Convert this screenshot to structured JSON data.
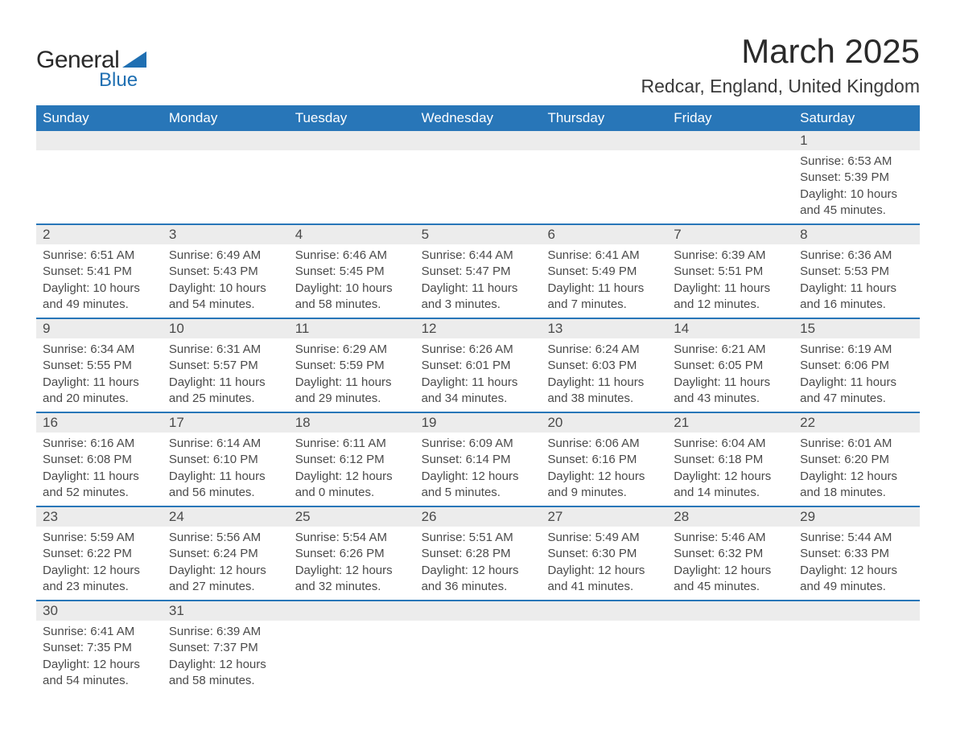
{
  "logo": {
    "general": "General",
    "blue": "Blue"
  },
  "title": "March 2025",
  "location": "Redcar, England, United Kingdom",
  "colors": {
    "header_bg": "#2876b8",
    "header_text": "#ffffff",
    "daynum_bg": "#ececec",
    "text": "#4a4a4a",
    "border": "#2876b8",
    "logo_blue": "#1f6fb2"
  },
  "weekdays": [
    "Sunday",
    "Monday",
    "Tuesday",
    "Wednesday",
    "Thursday",
    "Friday",
    "Saturday"
  ],
  "weeks": [
    [
      {
        "day": "",
        "sunrise": "",
        "sunset": "",
        "daylight1": "",
        "daylight2": ""
      },
      {
        "day": "",
        "sunrise": "",
        "sunset": "",
        "daylight1": "",
        "daylight2": ""
      },
      {
        "day": "",
        "sunrise": "",
        "sunset": "",
        "daylight1": "",
        "daylight2": ""
      },
      {
        "day": "",
        "sunrise": "",
        "sunset": "",
        "daylight1": "",
        "daylight2": ""
      },
      {
        "day": "",
        "sunrise": "",
        "sunset": "",
        "daylight1": "",
        "daylight2": ""
      },
      {
        "day": "",
        "sunrise": "",
        "sunset": "",
        "daylight1": "",
        "daylight2": ""
      },
      {
        "day": "1",
        "sunrise": "Sunrise: 6:53 AM",
        "sunset": "Sunset: 5:39 PM",
        "daylight1": "Daylight: 10 hours",
        "daylight2": "and 45 minutes."
      }
    ],
    [
      {
        "day": "2",
        "sunrise": "Sunrise: 6:51 AM",
        "sunset": "Sunset: 5:41 PM",
        "daylight1": "Daylight: 10 hours",
        "daylight2": "and 49 minutes."
      },
      {
        "day": "3",
        "sunrise": "Sunrise: 6:49 AM",
        "sunset": "Sunset: 5:43 PM",
        "daylight1": "Daylight: 10 hours",
        "daylight2": "and 54 minutes."
      },
      {
        "day": "4",
        "sunrise": "Sunrise: 6:46 AM",
        "sunset": "Sunset: 5:45 PM",
        "daylight1": "Daylight: 10 hours",
        "daylight2": "and 58 minutes."
      },
      {
        "day": "5",
        "sunrise": "Sunrise: 6:44 AM",
        "sunset": "Sunset: 5:47 PM",
        "daylight1": "Daylight: 11 hours",
        "daylight2": "and 3 minutes."
      },
      {
        "day": "6",
        "sunrise": "Sunrise: 6:41 AM",
        "sunset": "Sunset: 5:49 PM",
        "daylight1": "Daylight: 11 hours",
        "daylight2": "and 7 minutes."
      },
      {
        "day": "7",
        "sunrise": "Sunrise: 6:39 AM",
        "sunset": "Sunset: 5:51 PM",
        "daylight1": "Daylight: 11 hours",
        "daylight2": "and 12 minutes."
      },
      {
        "day": "8",
        "sunrise": "Sunrise: 6:36 AM",
        "sunset": "Sunset: 5:53 PM",
        "daylight1": "Daylight: 11 hours",
        "daylight2": "and 16 minutes."
      }
    ],
    [
      {
        "day": "9",
        "sunrise": "Sunrise: 6:34 AM",
        "sunset": "Sunset: 5:55 PM",
        "daylight1": "Daylight: 11 hours",
        "daylight2": "and 20 minutes."
      },
      {
        "day": "10",
        "sunrise": "Sunrise: 6:31 AM",
        "sunset": "Sunset: 5:57 PM",
        "daylight1": "Daylight: 11 hours",
        "daylight2": "and 25 minutes."
      },
      {
        "day": "11",
        "sunrise": "Sunrise: 6:29 AM",
        "sunset": "Sunset: 5:59 PM",
        "daylight1": "Daylight: 11 hours",
        "daylight2": "and 29 minutes."
      },
      {
        "day": "12",
        "sunrise": "Sunrise: 6:26 AM",
        "sunset": "Sunset: 6:01 PM",
        "daylight1": "Daylight: 11 hours",
        "daylight2": "and 34 minutes."
      },
      {
        "day": "13",
        "sunrise": "Sunrise: 6:24 AM",
        "sunset": "Sunset: 6:03 PM",
        "daylight1": "Daylight: 11 hours",
        "daylight2": "and 38 minutes."
      },
      {
        "day": "14",
        "sunrise": "Sunrise: 6:21 AM",
        "sunset": "Sunset: 6:05 PM",
        "daylight1": "Daylight: 11 hours",
        "daylight2": "and 43 minutes."
      },
      {
        "day": "15",
        "sunrise": "Sunrise: 6:19 AM",
        "sunset": "Sunset: 6:06 PM",
        "daylight1": "Daylight: 11 hours",
        "daylight2": "and 47 minutes."
      }
    ],
    [
      {
        "day": "16",
        "sunrise": "Sunrise: 6:16 AM",
        "sunset": "Sunset: 6:08 PM",
        "daylight1": "Daylight: 11 hours",
        "daylight2": "and 52 minutes."
      },
      {
        "day": "17",
        "sunrise": "Sunrise: 6:14 AM",
        "sunset": "Sunset: 6:10 PM",
        "daylight1": "Daylight: 11 hours",
        "daylight2": "and 56 minutes."
      },
      {
        "day": "18",
        "sunrise": "Sunrise: 6:11 AM",
        "sunset": "Sunset: 6:12 PM",
        "daylight1": "Daylight: 12 hours",
        "daylight2": "and 0 minutes."
      },
      {
        "day": "19",
        "sunrise": "Sunrise: 6:09 AM",
        "sunset": "Sunset: 6:14 PM",
        "daylight1": "Daylight: 12 hours",
        "daylight2": "and 5 minutes."
      },
      {
        "day": "20",
        "sunrise": "Sunrise: 6:06 AM",
        "sunset": "Sunset: 6:16 PM",
        "daylight1": "Daylight: 12 hours",
        "daylight2": "and 9 minutes."
      },
      {
        "day": "21",
        "sunrise": "Sunrise: 6:04 AM",
        "sunset": "Sunset: 6:18 PM",
        "daylight1": "Daylight: 12 hours",
        "daylight2": "and 14 minutes."
      },
      {
        "day": "22",
        "sunrise": "Sunrise: 6:01 AM",
        "sunset": "Sunset: 6:20 PM",
        "daylight1": "Daylight: 12 hours",
        "daylight2": "and 18 minutes."
      }
    ],
    [
      {
        "day": "23",
        "sunrise": "Sunrise: 5:59 AM",
        "sunset": "Sunset: 6:22 PM",
        "daylight1": "Daylight: 12 hours",
        "daylight2": "and 23 minutes."
      },
      {
        "day": "24",
        "sunrise": "Sunrise: 5:56 AM",
        "sunset": "Sunset: 6:24 PM",
        "daylight1": "Daylight: 12 hours",
        "daylight2": "and 27 minutes."
      },
      {
        "day": "25",
        "sunrise": "Sunrise: 5:54 AM",
        "sunset": "Sunset: 6:26 PM",
        "daylight1": "Daylight: 12 hours",
        "daylight2": "and 32 minutes."
      },
      {
        "day": "26",
        "sunrise": "Sunrise: 5:51 AM",
        "sunset": "Sunset: 6:28 PM",
        "daylight1": "Daylight: 12 hours",
        "daylight2": "and 36 minutes."
      },
      {
        "day": "27",
        "sunrise": "Sunrise: 5:49 AM",
        "sunset": "Sunset: 6:30 PM",
        "daylight1": "Daylight: 12 hours",
        "daylight2": "and 41 minutes."
      },
      {
        "day": "28",
        "sunrise": "Sunrise: 5:46 AM",
        "sunset": "Sunset: 6:32 PM",
        "daylight1": "Daylight: 12 hours",
        "daylight2": "and 45 minutes."
      },
      {
        "day": "29",
        "sunrise": "Sunrise: 5:44 AM",
        "sunset": "Sunset: 6:33 PM",
        "daylight1": "Daylight: 12 hours",
        "daylight2": "and 49 minutes."
      }
    ],
    [
      {
        "day": "30",
        "sunrise": "Sunrise: 6:41 AM",
        "sunset": "Sunset: 7:35 PM",
        "daylight1": "Daylight: 12 hours",
        "daylight2": "and 54 minutes."
      },
      {
        "day": "31",
        "sunrise": "Sunrise: 6:39 AM",
        "sunset": "Sunset: 7:37 PM",
        "daylight1": "Daylight: 12 hours",
        "daylight2": "and 58 minutes."
      },
      {
        "day": "",
        "sunrise": "",
        "sunset": "",
        "daylight1": "",
        "daylight2": ""
      },
      {
        "day": "",
        "sunrise": "",
        "sunset": "",
        "daylight1": "",
        "daylight2": ""
      },
      {
        "day": "",
        "sunrise": "",
        "sunset": "",
        "daylight1": "",
        "daylight2": ""
      },
      {
        "day": "",
        "sunrise": "",
        "sunset": "",
        "daylight1": "",
        "daylight2": ""
      },
      {
        "day": "",
        "sunrise": "",
        "sunset": "",
        "daylight1": "",
        "daylight2": ""
      }
    ]
  ]
}
